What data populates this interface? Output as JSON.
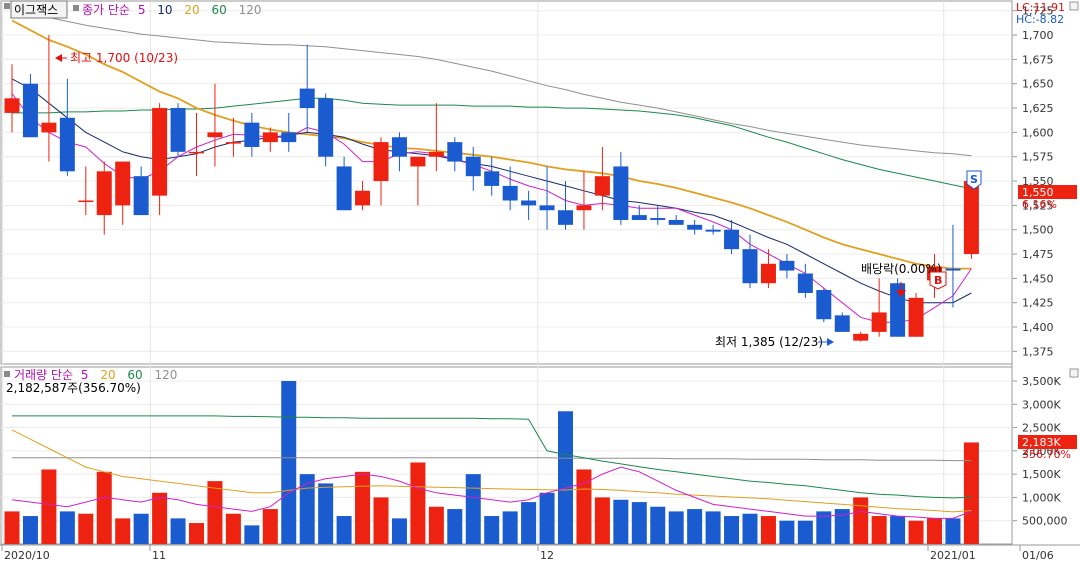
{
  "stock_name": "이그잭스",
  "price_legend": {
    "label": "종가 단순",
    "periods": [
      "5",
      "10",
      "20",
      "60",
      "120"
    ]
  },
  "volume_legend": {
    "label": "거래량 단순",
    "periods": [
      "5",
      "20",
      "60",
      "120"
    ]
  },
  "volume_info": "2,182,587주(356.70%)",
  "lc_label": "LC:11.91",
  "hc_label": "HC:-8.82",
  "high_marker": "최고 1,700 (10/23)",
  "low_marker": "최저 1,385 (12/23)",
  "dividend_marker": "배당락(0.00%)",
  "badge_b": "B",
  "badge_s": "S",
  "current_price_tag": "1,550",
  "current_change_tag": "6.16%",
  "current_volume_tag": "2,183K",
  "current_volume_pct_tag": "356.70%",
  "date_labels": [
    "2020/10",
    "11",
    "12",
    "2021/01",
    "01/06"
  ],
  "colors": {
    "up": "#ee2211",
    "down": "#1b5bd0",
    "ma5": "#cc22cc",
    "ma10": "#1a2a6c",
    "ma20": "#e0a020",
    "ma60": "#1a8a4a",
    "ma120": "#909090"
  },
  "chart_data": [
    {
      "type": "candlestick",
      "y_axis_ticks": [
        "1,725",
        "1,700",
        "1,675",
        "1,650",
        "1,625",
        "1,600",
        "1,575",
        "1,550",
        "1,525",
        "1,500",
        "1,475",
        "1,450",
        "1,425",
        "1,400",
        "1,375"
      ],
      "ylim": [
        1362,
        1735
      ],
      "candles": [
        {
          "o": 1620,
          "h": 1670,
          "l": 1600,
          "c": 1635
        },
        {
          "o": 1650,
          "h": 1660,
          "l": 1595,
          "c": 1595
        },
        {
          "o": 1600,
          "h": 1700,
          "l": 1570,
          "c": 1610
        },
        {
          "o": 1615,
          "h": 1655,
          "l": 1555,
          "c": 1560
        },
        {
          "o": 1530,
          "h": 1565,
          "l": 1515,
          "c": 1530
        },
        {
          "o": 1515,
          "h": 1570,
          "l": 1495,
          "c": 1560
        },
        {
          "o": 1525,
          "h": 1570,
          "l": 1505,
          "c": 1570
        },
        {
          "o": 1555,
          "h": 1565,
          "l": 1515,
          "c": 1515
        },
        {
          "o": 1535,
          "h": 1630,
          "l": 1515,
          "c": 1625
        },
        {
          "o": 1625,
          "h": 1630,
          "l": 1575,
          "c": 1580
        },
        {
          "o": 1580,
          "h": 1620,
          "l": 1555,
          "c": 1580
        },
        {
          "o": 1595,
          "h": 1650,
          "l": 1565,
          "c": 1600
        },
        {
          "o": 1590,
          "h": 1615,
          "l": 1575,
          "c": 1590
        },
        {
          "o": 1610,
          "h": 1620,
          "l": 1575,
          "c": 1585
        },
        {
          "o": 1590,
          "h": 1605,
          "l": 1580,
          "c": 1600
        },
        {
          "o": 1600,
          "h": 1620,
          "l": 1580,
          "c": 1590
        },
        {
          "o": 1645,
          "h": 1690,
          "l": 1600,
          "c": 1625
        },
        {
          "o": 1635,
          "h": 1640,
          "l": 1565,
          "c": 1575
        },
        {
          "o": 1565,
          "h": 1575,
          "l": 1520,
          "c": 1520
        },
        {
          "o": 1525,
          "h": 1550,
          "l": 1520,
          "c": 1540
        },
        {
          "o": 1550,
          "h": 1595,
          "l": 1525,
          "c": 1590
        },
        {
          "o": 1595,
          "h": 1600,
          "l": 1560,
          "c": 1575
        },
        {
          "o": 1565,
          "h": 1575,
          "l": 1525,
          "c": 1575
        },
        {
          "o": 1575,
          "h": 1630,
          "l": 1560,
          "c": 1580
        },
        {
          "o": 1590,
          "h": 1595,
          "l": 1560,
          "c": 1570
        },
        {
          "o": 1575,
          "h": 1585,
          "l": 1540,
          "c": 1555
        },
        {
          "o": 1560,
          "h": 1575,
          "l": 1535,
          "c": 1545
        },
        {
          "o": 1545,
          "h": 1565,
          "l": 1520,
          "c": 1530
        },
        {
          "o": 1530,
          "h": 1540,
          "l": 1510,
          "c": 1525
        },
        {
          "o": 1525,
          "h": 1565,
          "l": 1500,
          "c": 1520
        },
        {
          "o": 1520,
          "h": 1550,
          "l": 1500,
          "c": 1505
        },
        {
          "o": 1520,
          "h": 1560,
          "l": 1500,
          "c": 1525
        },
        {
          "o": 1535,
          "h": 1585,
          "l": 1520,
          "c": 1555
        },
        {
          "o": 1565,
          "h": 1580,
          "l": 1505,
          "c": 1510
        },
        {
          "o": 1515,
          "h": 1525,
          "l": 1510,
          "c": 1510
        },
        {
          "o": 1512,
          "h": 1525,
          "l": 1505,
          "c": 1510
        },
        {
          "o": 1510,
          "h": 1515,
          "l": 1505,
          "c": 1505
        },
        {
          "o": 1505,
          "h": 1510,
          "l": 1495,
          "c": 1500
        },
        {
          "o": 1500,
          "h": 1505,
          "l": 1495,
          "c": 1498
        },
        {
          "o": 1500,
          "h": 1510,
          "l": 1475,
          "c": 1480
        },
        {
          "o": 1480,
          "h": 1495,
          "l": 1440,
          "c": 1445
        },
        {
          "o": 1445,
          "h": 1480,
          "l": 1440,
          "c": 1465
        },
        {
          "o": 1468,
          "h": 1475,
          "l": 1450,
          "c": 1458
        },
        {
          "o": 1455,
          "h": 1465,
          "l": 1430,
          "c": 1435
        },
        {
          "o": 1438,
          "h": 1440,
          "l": 1405,
          "c": 1408
        },
        {
          "o": 1412,
          "h": 1415,
          "l": 1395,
          "c": 1395
        },
        {
          "o": 1386,
          "h": 1395,
          "l": 1385,
          "c": 1393
        },
        {
          "o": 1395,
          "h": 1450,
          "l": 1390,
          "c": 1415
        },
        {
          "o": 1445,
          "h": 1450,
          "l": 1390,
          "c": 1390
        },
        {
          "o": 1390,
          "h": 1435,
          "l": 1390,
          "c": 1430
        },
        {
          "o": 1448,
          "h": 1475,
          "l": 1430,
          "c": 1462
        },
        {
          "o": 1460,
          "h": 1505,
          "l": 1420,
          "c": 1458
        },
        {
          "o": 1475,
          "h": 1550,
          "l": 1470,
          "c": 1550
        }
      ],
      "ma5": [
        1640,
        1615,
        1600,
        1590,
        1585,
        1568,
        1555,
        1552,
        1560,
        1575,
        1585,
        1592,
        1598,
        1597,
        1595,
        1595,
        1605,
        1600,
        1588,
        1570,
        1570,
        1578,
        1580,
        1578,
        1572,
        1567,
        1560,
        1552,
        1545,
        1540,
        1530,
        1525,
        1527,
        1525,
        1522,
        1522,
        1522,
        1515,
        1508,
        1500,
        1485,
        1475,
        1465,
        1455,
        1440,
        1425,
        1410,
        1405,
        1405,
        1408,
        1420,
        1432,
        1460
      ],
      "ma10": [
        1655,
        1645,
        1630,
        1615,
        1600,
        1590,
        1580,
        1575,
        1572,
        1575,
        1578,
        1585,
        1590,
        1592,
        1595,
        1597,
        1600,
        1598,
        1595,
        1588,
        1582,
        1580,
        1578,
        1576,
        1572,
        1568,
        1565,
        1560,
        1555,
        1550,
        1545,
        1540,
        1535,
        1530,
        1528,
        1525,
        1522,
        1518,
        1515,
        1508,
        1500,
        1492,
        1485,
        1475,
        1465,
        1455,
        1445,
        1437,
        1430,
        1425,
        1425,
        1425,
        1435
      ],
      "ma20": [
        1715,
        1705,
        1695,
        1688,
        1680,
        1670,
        1662,
        1652,
        1642,
        1635,
        1625,
        1618,
        1612,
        1607,
        1603,
        1600,
        1598,
        1596,
        1594,
        1590,
        1587,
        1584,
        1583,
        1581,
        1579,
        1577,
        1575,
        1572,
        1569,
        1565,
        1562,
        1560,
        1558,
        1555,
        1550,
        1547,
        1543,
        1538,
        1533,
        1528,
        1522,
        1515,
        1508,
        1500,
        1492,
        1485,
        1480,
        1475,
        1470,
        1465,
        1462,
        1460,
        1460
      ],
      "ma60": [
        1620,
        1620,
        1620,
        1621,
        1621,
        1622,
        1622,
        1623,
        1623,
        1624,
        1624,
        1625,
        1627,
        1629,
        1631,
        1633,
        1635,
        1635,
        1633,
        1630,
        1629,
        1628,
        1628,
        1628,
        1628,
        1627,
        1627,
        1627,
        1626,
        1626,
        1625,
        1625,
        1624,
        1623,
        1622,
        1620,
        1618,
        1615,
        1611,
        1607,
        1601,
        1595,
        1590,
        1584,
        1578,
        1572,
        1567,
        1562,
        1558,
        1554,
        1550,
        1546,
        1542
      ],
      "ma120": [
        1725,
        1722,
        1718,
        1714,
        1710,
        1707,
        1704,
        1701,
        1699,
        1697,
        1695,
        1693,
        1692,
        1691,
        1690,
        1690,
        1689,
        1688,
        1686,
        1684,
        1682,
        1680,
        1678,
        1675,
        1671,
        1667,
        1663,
        1658,
        1653,
        1648,
        1644,
        1639,
        1635,
        1631,
        1628,
        1625,
        1621,
        1617,
        1613,
        1609,
        1606,
        1602,
        1599,
        1596,
        1593,
        1590,
        1587,
        1585,
        1583,
        1581,
        1579,
        1578,
        1576
      ]
    },
    {
      "type": "bar",
      "y_axis_ticks": [
        "3,500K",
        "3,000K",
        "2,500K",
        "2,000K",
        "1,500K",
        "1,000K",
        "500,000"
      ],
      "ylim": [
        0,
        3800000
      ],
      "volume": [
        700000,
        600000,
        1600000,
        700000,
        650000,
        1550000,
        550000,
        650000,
        1100000,
        550000,
        450000,
        1350000,
        650000,
        400000,
        750000,
        3500000,
        1500000,
        1300000,
        600000,
        1550000,
        1000000,
        550000,
        1750000,
        800000,
        750000,
        1500000,
        600000,
        700000,
        900000,
        1100000,
        2850000,
        1600000,
        1000000,
        950000,
        900000,
        800000,
        700000,
        750000,
        700000,
        600000,
        650000,
        600000,
        500000,
        500000,
        700000,
        750000,
        1000000,
        600000,
        600000,
        500000,
        550000,
        550000,
        2180000
      ],
      "ma5": [
        950000,
        900000,
        850000,
        800000,
        900000,
        1000000,
        950000,
        900000,
        1000000,
        950000,
        850000,
        800000,
        750000,
        700000,
        800000,
        1100000,
        1300000,
        1400000,
        1450000,
        1500000,
        1450000,
        1350000,
        1200000,
        1100000,
        1050000,
        1000000,
        950000,
        900000,
        950000,
        1100000,
        1200000,
        1300000,
        1500000,
        1650000,
        1550000,
        1350000,
        1150000,
        1000000,
        850000,
        800000,
        750000,
        700000,
        650000,
        600000,
        600000,
        620000,
        700000,
        650000,
        600000,
        580000,
        550000,
        550000,
        700000
      ],
      "ma20": [
        2450000,
        2250000,
        2050000,
        1850000,
        1650000,
        1550000,
        1450000,
        1400000,
        1350000,
        1300000,
        1250000,
        1200000,
        1150000,
        1100000,
        1100000,
        1150000,
        1200000,
        1220000,
        1230000,
        1240000,
        1250000,
        1240000,
        1230000,
        1220000,
        1210000,
        1200000,
        1190000,
        1180000,
        1170000,
        1165000,
        1160000,
        1180000,
        1170000,
        1150000,
        1120000,
        1100000,
        1070000,
        1050000,
        1030000,
        1010000,
        990000,
        970000,
        940000,
        910000,
        880000,
        850000,
        820000,
        790000,
        760000,
        740000,
        720000,
        690000,
        720000
      ],
      "ma60": [
        2750000,
        2750000,
        2750000,
        2750000,
        2750000,
        2750000,
        2750000,
        2750000,
        2750000,
        2750000,
        2750000,
        2750000,
        2740000,
        2740000,
        2730000,
        2720000,
        2720000,
        2710000,
        2710000,
        2700000,
        2700000,
        2700000,
        2700000,
        2700000,
        2700000,
        2700000,
        2690000,
        2690000,
        2680000,
        2000000,
        1920000,
        1850000,
        1780000,
        1720000,
        1660000,
        1600000,
        1550000,
        1500000,
        1450000,
        1400000,
        1350000,
        1320000,
        1280000,
        1250000,
        1200000,
        1150000,
        1100000,
        1070000,
        1050000,
        1020000,
        1000000,
        990000,
        1000000
      ],
      "ma120": [
        1850000,
        1850000,
        1850000,
        1850000,
        1850000,
        1850000,
        1850000,
        1850000,
        1850000,
        1850000,
        1850000,
        1850000,
        1850000,
        1850000,
        1850000,
        1850000,
        1850000,
        1850000,
        1850000,
        1850000,
        1850000,
        1850000,
        1850000,
        1850000,
        1850000,
        1850000,
        1850000,
        1850000,
        1850000,
        1850000,
        1840000,
        1840000,
        1840000,
        1840000,
        1840000,
        1840000,
        1830000,
        1830000,
        1830000,
        1830000,
        1820000,
        1820000,
        1820000,
        1820000,
        1810000,
        1810000,
        1810000,
        1800000,
        1800000,
        1800000,
        1800000,
        1790000,
        1790000
      ]
    }
  ]
}
